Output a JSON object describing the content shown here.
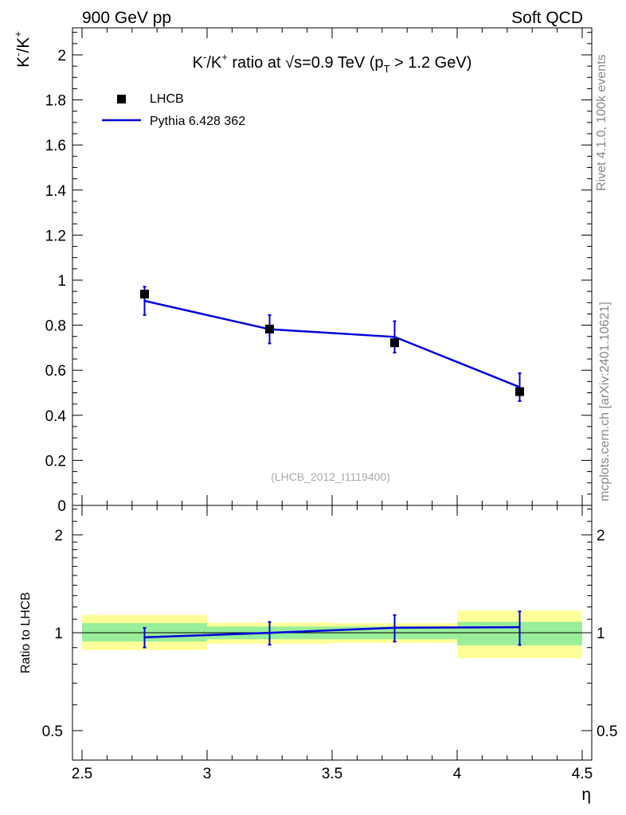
{
  "header": {
    "left": "900 GeV pp",
    "right": "Soft QCD"
  },
  "side": {
    "rivet": "Rivet 4.1.0,  100k events",
    "mcplots": "mcplots.cern.ch [arXiv:2401.10621]"
  },
  "colors": {
    "mc": "#0000dd",
    "data": "#000000",
    "band_inner": "#99ee99",
    "band_outer": "#ffff99"
  },
  "chart_data": [
    {
      "type": "line",
      "title": "K⁻/K⁺ ratio at √s=0.9 TeV (p_T > 1.2 GeV)",
      "title_parts": {
        "ratio_label": "K",
        "sup_minus": "-",
        "slash": "/K",
        "sup_plus": "+",
        "mid": " ratio at ",
        "sqrt": "√",
        "s_eq": "s=0.9 TeV (p",
        "sub_t": "T",
        "tail": " > 1.2 GeV)"
      },
      "ylabel_parts": {
        "k1": "K",
        "m": "-",
        "k2": "/K",
        "p": "+"
      },
      "xlabel": "η",
      "watermark": "(LHCB_2012_I1119400)",
      "xlim": [
        2.5,
        4.5
      ],
      "ylim": [
        0,
        2.12
      ],
      "yticks": [
        "0",
        "0.2",
        "0.4",
        "0.6",
        "0.8",
        "1",
        "1.2",
        "1.4",
        "1.6",
        "1.8",
        "2"
      ],
      "xticks": [
        "2.5",
        "3",
        "3.5",
        "4",
        "4.5"
      ],
      "legend": [
        {
          "name": "LHCB",
          "style": "marker"
        },
        {
          "name": "Pythia 6.428 362",
          "style": "line"
        }
      ],
      "series": [
        {
          "name": "LHCB",
          "x": [
            2.75,
            3.25,
            3.75,
            4.25
          ],
          "values": [
            0.938,
            0.783,
            0.722,
            0.505
          ],
          "yerr": [
            0.03,
            0.025,
            0.03,
            0.04
          ],
          "bins": [
            [
              2.5,
              3.0
            ],
            [
              3.0,
              3.5
            ],
            [
              3.5,
              4.0
            ],
            [
              4.0,
              4.5
            ]
          ]
        },
        {
          "name": "Pythia 6.428 362",
          "x": [
            2.75,
            3.25,
            3.75,
            4.25
          ],
          "values": [
            0.908,
            0.782,
            0.748,
            0.525
          ],
          "yerr": [
            0.063,
            0.063,
            0.07,
            0.062
          ]
        }
      ]
    },
    {
      "type": "line",
      "ylabel": "Ratio to LHCB",
      "yscale": "log",
      "xlim": [
        2.5,
        4.5
      ],
      "ylim": [
        0.4,
        2.5
      ],
      "yticks": [
        "0.5",
        "1",
        "2"
      ],
      "bands": [
        {
          "bin": [
            2.5,
            3.0
          ],
          "inner": [
            0.94,
            1.07
          ],
          "outer": [
            0.885,
            1.135
          ]
        },
        {
          "bin": [
            3.0,
            3.5
          ],
          "inner": [
            0.955,
            1.045
          ],
          "outer": [
            0.925,
            1.075
          ]
        },
        {
          "bin": [
            3.5,
            4.0
          ],
          "inner": [
            0.955,
            1.045
          ],
          "outer": [
            0.93,
            1.07
          ]
        },
        {
          "bin": [
            4.0,
            4.5
          ],
          "inner": [
            0.915,
            1.08
          ],
          "outer": [
            0.835,
            1.17
          ]
        }
      ],
      "series": [
        {
          "name": "Pythia 6.428 362 / LHCB",
          "x": [
            2.75,
            3.25,
            3.75,
            4.25
          ],
          "values": [
            0.968,
            0.999,
            1.036,
            1.04
          ],
          "yerr": [
            0.067,
            0.08,
            0.097,
            0.123
          ]
        }
      ]
    }
  ]
}
